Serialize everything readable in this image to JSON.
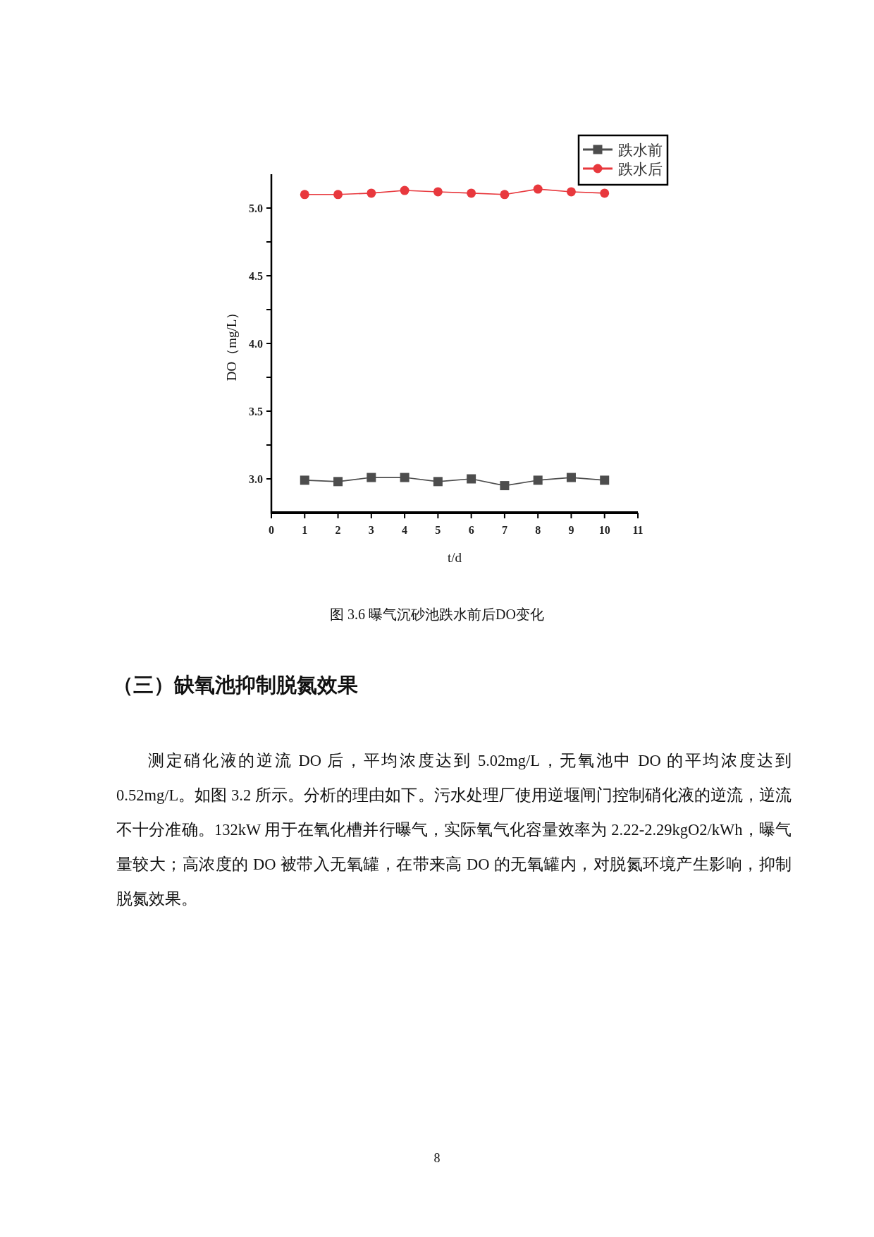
{
  "chart_data": {
    "type": "line",
    "xlabel": "t/d",
    "ylabel": "DO（mg/L）",
    "x": [
      1,
      2,
      3,
      4,
      5,
      6,
      7,
      8,
      9,
      10
    ],
    "series": [
      {
        "name": "跌水前",
        "color": "#4d4d4d",
        "marker": "square",
        "values": [
          2.99,
          2.98,
          3.01,
          3.01,
          2.98,
          3.0,
          2.95,
          2.99,
          3.01,
          2.99
        ]
      },
      {
        "name": "跌水后",
        "color": "#e8383d",
        "marker": "circle",
        "values": [
          5.1,
          5.1,
          5.11,
          5.13,
          5.12,
          5.11,
          5.1,
          5.14,
          5.12,
          5.11
        ]
      }
    ],
    "xlim": [
      0,
      11
    ],
    "ylim": [
      2.75,
      5.25
    ],
    "xticks": [
      0,
      1,
      2,
      3,
      4,
      5,
      6,
      7,
      8,
      9,
      10,
      11
    ],
    "yticks": [
      {
        "value": 3.0,
        "label": "3.0"
      },
      {
        "value": 3.25,
        "label": null
      },
      {
        "value": 3.5,
        "label": "3.5"
      },
      {
        "value": 3.75,
        "label": null
      },
      {
        "value": 4.0,
        "label": "4.0"
      },
      {
        "value": 4.25,
        "label": null
      },
      {
        "value": 4.5,
        "label": "4.5"
      },
      {
        "value": 4.75,
        "label": null
      },
      {
        "value": 5.0,
        "label": "5.0"
      }
    ],
    "legend": "top right",
    "annotations": [
      "图 3.6 曝气沉砂池跌水前后DO变化",
      "（三）缺氧池抑制脱氮效果",
      "测定硝化液的逆流 DO 后，平均浓度达到 5.02mg/L，无氧池中 DO 的平均浓度达到 0.52mg/L。如图 3.2 所示。分析的理由如下。污水处理厂使用逆堰闸门控制硝化液的逆流，逆流不十分准确。132kW 用于在氧化槽并行曝气，实际氧气化容量效率为 2.22-2.29kgO2/kWh，曝气量较大；高浓度的 DO 被带入无氧罐，在带来高 DO 的无氧罐内，对脱氮环境产生影响，抑制脱氮效果。",
      "8"
    ]
  }
}
